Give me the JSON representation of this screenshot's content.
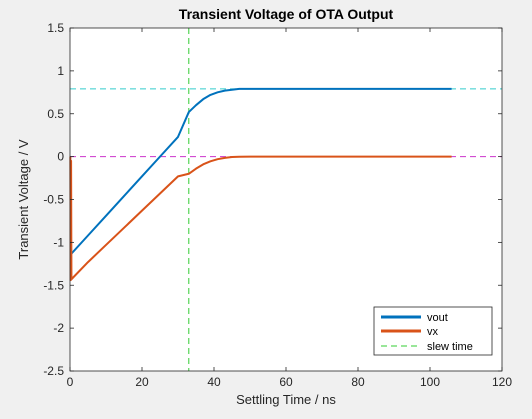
{
  "chart_data": {
    "type": "line",
    "title": "Transient Voltage of OTA Output",
    "xlabel": "Settling Time  / ns",
    "ylabel": "Transient Voltage  / V",
    "xlim": [
      0,
      120
    ],
    "ylim": [
      -2.5,
      1.5
    ],
    "xticks": [
      0,
      20,
      40,
      60,
      80,
      100,
      120
    ],
    "yticks": [
      -2.5,
      -2,
      -1.5,
      -1,
      -0.5,
      0,
      0.5,
      1,
      1.5
    ],
    "xtick_labels": [
      "0",
      "20",
      "40",
      "60",
      "80",
      "100",
      "120"
    ],
    "ytick_labels": [
      "-2.5",
      "-2",
      "-1.5",
      "-1",
      "-0.5",
      "0",
      "0.5",
      "1",
      "1.5"
    ],
    "grid": false,
    "legend_position": "bottom-right",
    "series": [
      {
        "name": "vout",
        "color": "#0072bd",
        "style": "solid",
        "x": [
          0.2,
          5,
          10,
          15,
          20,
          25,
          30,
          33,
          35,
          37,
          39,
          41,
          43,
          45,
          47,
          50,
          55,
          60,
          70,
          80,
          90,
          100,
          106
        ],
        "y": [
          -1.14,
          -0.92,
          -0.69,
          -0.46,
          -0.23,
          0.0,
          0.23,
          0.52,
          0.6,
          0.67,
          0.72,
          0.75,
          0.77,
          0.78,
          0.79,
          0.79,
          0.79,
          0.79,
          0.79,
          0.79,
          0.79,
          0.79,
          0.79
        ]
      },
      {
        "name": "vx",
        "color": "#d95319",
        "style": "solid",
        "x": [
          0.1,
          0.2,
          0.3,
          0.4,
          5,
          10,
          15,
          20,
          25,
          30,
          33,
          35,
          37,
          39,
          41,
          43,
          45,
          47,
          50,
          55,
          60,
          70,
          80,
          90,
          100,
          106
        ],
        "y": [
          0.0,
          -1.44,
          -0.05,
          -1.43,
          -1.23,
          -1.03,
          -0.83,
          -0.63,
          -0.43,
          -0.23,
          -0.2,
          -0.14,
          -0.09,
          -0.055,
          -0.03,
          -0.015,
          -0.005,
          -0.002,
          0.0,
          0.0,
          0.0,
          0.0,
          0.0,
          0.0,
          0.0,
          0.0
        ]
      }
    ],
    "reference_lines": [
      {
        "name": "slew time",
        "orientation": "vertical",
        "value": 33,
        "color": "#33cc33",
        "style": "dashed",
        "in_legend": true
      },
      {
        "orientation": "horizontal",
        "value": 0.79,
        "color": "#33cccc",
        "style": "dashed",
        "in_legend": false
      },
      {
        "orientation": "horizontal",
        "value": 0,
        "color": "#cc33cc",
        "style": "dashed",
        "in_legend": false
      }
    ]
  }
}
